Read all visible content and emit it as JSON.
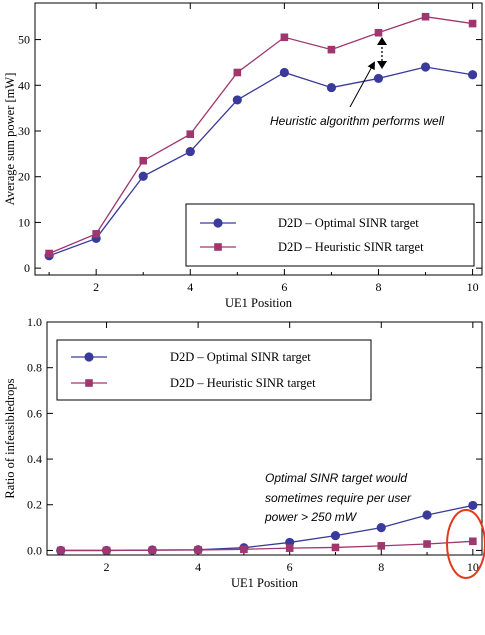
{
  "colors": {
    "optimal": "#3a3a9a",
    "heuristic": "#a0366e",
    "highlight_ellipse": "#e03a1a",
    "axis": "#000000"
  },
  "chart_data": [
    {
      "type": "line",
      "xlabel": "UE1 Position",
      "ylabel": "Average sum power [mW]",
      "xlim": [
        0.7,
        10.2
      ],
      "ylim": [
        -1.5,
        58
      ],
      "xticks": [
        "2",
        "4",
        "6",
        "8",
        "10"
      ],
      "yticks": [
        "0",
        "10",
        "20",
        "30",
        "40",
        "50"
      ],
      "x": [
        1,
        2,
        3,
        4,
        5,
        6,
        7,
        8,
        9,
        10
      ],
      "series": [
        {
          "name": "D2D – Optimal SINR target",
          "marker": "circle",
          "values": [
            2.7,
            6.5,
            20.1,
            25.5,
            36.8,
            42.8,
            39.5,
            41.5,
            44.0,
            42.3
          ]
        },
        {
          "name": "D2D – Heuristic SINR target",
          "marker": "square",
          "values": [
            3.2,
            7.5,
            23.5,
            29.3,
            42.8,
            50.5,
            47.8,
            51.5,
            55.0,
            53.5
          ]
        }
      ],
      "legend_position": "bottom-right",
      "annotation": "Heuristic algorithm performs well"
    },
    {
      "type": "line",
      "xlabel": "UE1 Position",
      "ylabel": "Ratio of infeasibledrops",
      "xlim": [
        0.7,
        10.2
      ],
      "ylim": [
        -0.02,
        1.0
      ],
      "xticks": [
        "2",
        "4",
        "6",
        "8",
        "10"
      ],
      "yticks": [
        "0.0",
        "0.2",
        "0.4",
        "0.6",
        "0.8",
        "1.0"
      ],
      "x": [
        1,
        2,
        3,
        4,
        5,
        6,
        7,
        8,
        9,
        10
      ],
      "series": [
        {
          "name": "D2D – Optimal SINR target",
          "marker": "circle",
          "values": [
            0.0,
            0.0,
            0.002,
            0.003,
            0.012,
            0.035,
            0.065,
            0.1,
            0.155,
            0.197
          ]
        },
        {
          "name": "D2D – Heuristic SINR target",
          "marker": "square",
          "values": [
            0.0,
            0.0,
            0.001,
            0.002,
            0.005,
            0.01,
            0.013,
            0.02,
            0.028,
            0.04
          ]
        }
      ],
      "legend_position": "top-left",
      "annotation_lines": [
        "Optimal SINR target would",
        "sometimes require per user",
        "power > 250 mW"
      ]
    }
  ]
}
